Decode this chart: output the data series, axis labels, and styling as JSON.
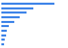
{
  "values": [
    57,
    34,
    27,
    20,
    14,
    8,
    6,
    5,
    4,
    3
  ],
  "bar_color": "#3b82e8",
  "background_color": "#ffffff",
  "grid_color": "#dddddd",
  "xlim": [
    0,
    70
  ]
}
